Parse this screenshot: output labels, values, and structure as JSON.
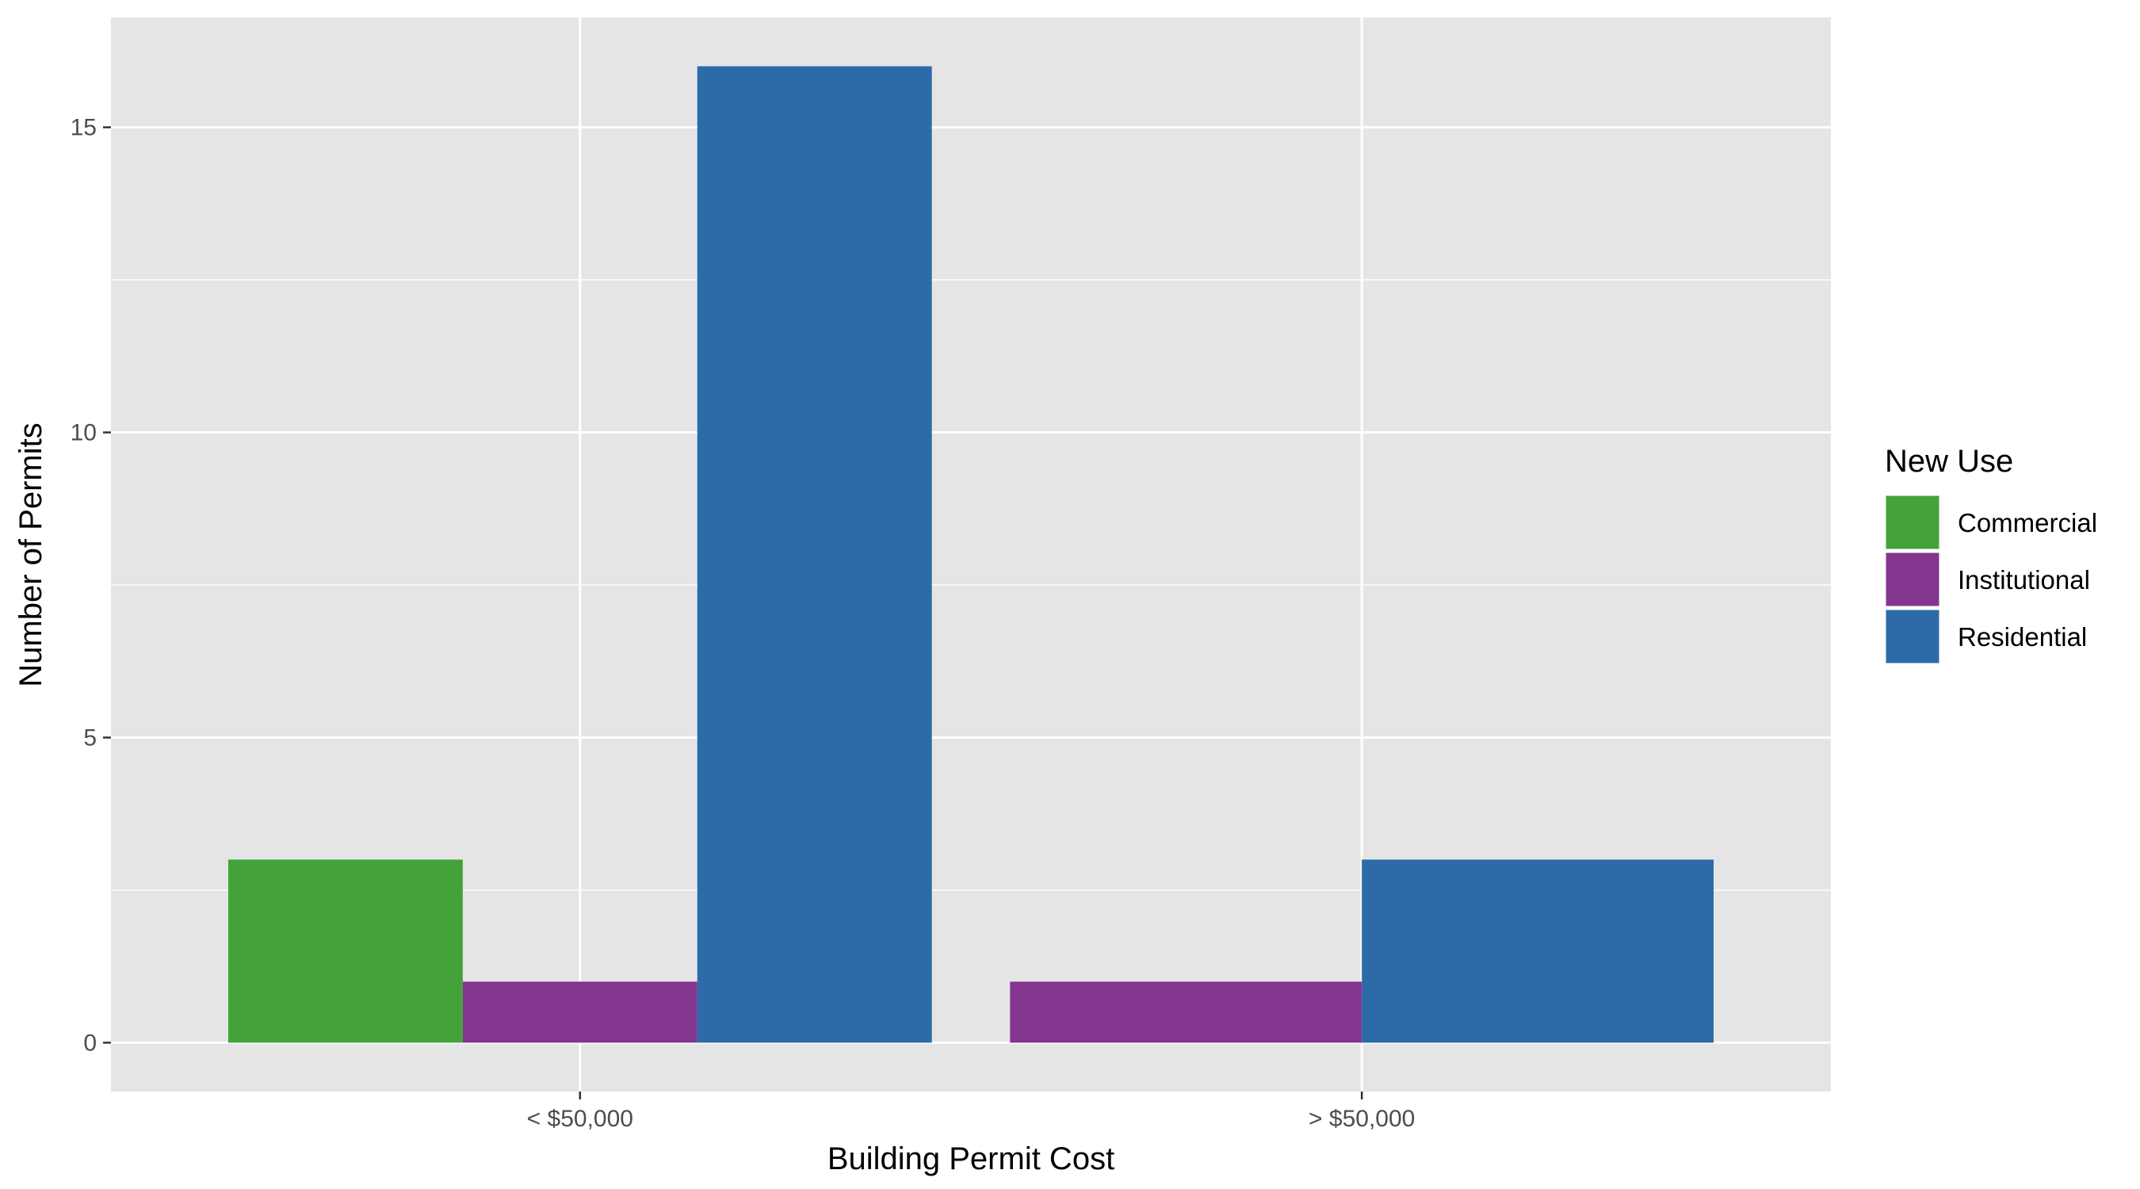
{
  "chart_data": {
    "type": "bar",
    "xlabel": "Building Permit Cost",
    "ylabel": "Number of Permits",
    "categories": [
      "< $50,000",
      "> $50,000"
    ],
    "ylim": [
      -0.8,
      16.8
    ],
    "yticks": [
      0,
      5,
      10,
      15
    ],
    "grid": true,
    "legend": {
      "title": "New Use",
      "placement": "right",
      "entries": [
        "Commercial",
        "Institutional",
        "Residential"
      ]
    },
    "colors": {
      "Commercial": "#43a33a",
      "Institutional": "#84368f",
      "Residential": "#2d6aa8",
      "panel": "#e5e5e5",
      "grid": "#ffffff"
    },
    "series": [
      {
        "name": "Commercial",
        "values": [
          3,
          0
        ]
      },
      {
        "name": "Institutional",
        "values": [
          1,
          1
        ]
      },
      {
        "name": "Residential",
        "values": [
          16,
          3
        ]
      }
    ],
    "bars": [
      {
        "category": "< $50,000",
        "series": "Commercial",
        "value": 3
      },
      {
        "category": "< $50,000",
        "series": "Institutional",
        "value": 1
      },
      {
        "category": "< $50,000",
        "series": "Residential",
        "value": 16
      },
      {
        "category": "> $50,000",
        "series": "Institutional",
        "value": 1
      },
      {
        "category": "> $50,000",
        "series": "Residential",
        "value": 3
      }
    ]
  }
}
